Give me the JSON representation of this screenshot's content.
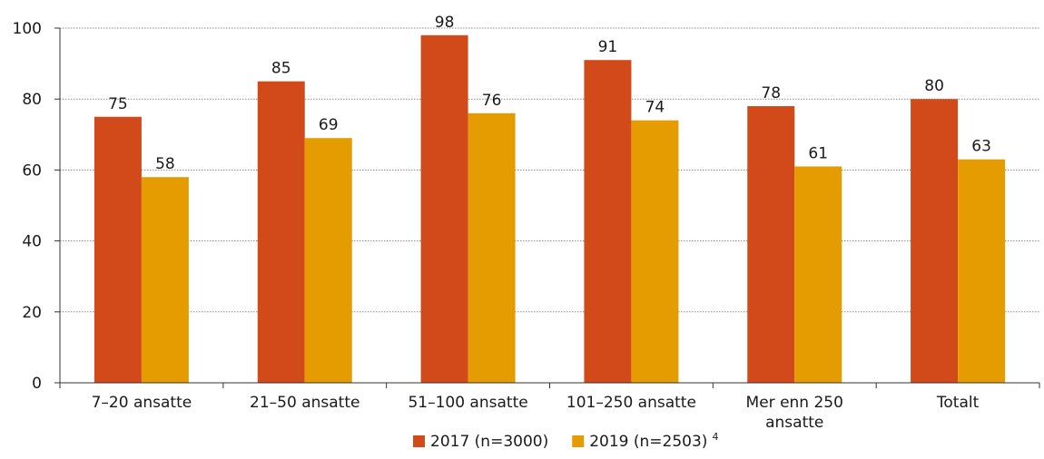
{
  "chart_data": {
    "type": "bar",
    "categories": [
      [
        "7–20 ansatte"
      ],
      [
        "21–50 ansatte"
      ],
      [
        "51–100 ansatte"
      ],
      [
        "101–250 ansatte"
      ],
      [
        "Mer enn 250",
        "ansatte"
      ],
      [
        "Totalt"
      ]
    ],
    "series": [
      {
        "name": "2017 (n=3000)",
        "color": "#d24a19",
        "values": [
          75,
          85,
          98,
          91,
          78,
          80
        ]
      },
      {
        "name": "2019 (n=2503)",
        "color": "#e59c00",
        "values": [
          58,
          69,
          76,
          74,
          61,
          63
        ]
      }
    ],
    "legend_note": "4",
    "y_ticks": [
      0,
      20,
      40,
      60,
      80,
      100
    ],
    "ylim": [
      0,
      100
    ],
    "grid": true,
    "legend": "bottom",
    "title": "",
    "xlabel": "",
    "ylabel": ""
  }
}
